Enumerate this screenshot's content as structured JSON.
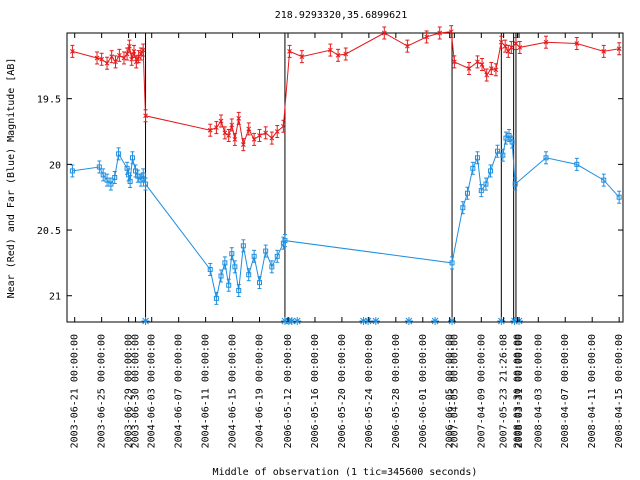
{
  "chart_data": {
    "type": "scatter",
    "title": "218.9293320,35.6899621",
    "xlabel": "Middle of observation (1 tic=345600 seconds)",
    "ylabel": "Near (Red) and Far (Blue) Magnitude [AB]",
    "ylim": [
      21.2,
      19.0
    ],
    "y_ticks": [
      19.5,
      20,
      20.5,
      21
    ],
    "x_ticks": [
      "2003-06-21 00:00:00",
      "2003-06-25 00:00:00",
      "2003-06-29 00:00:00",
      "2003-06-30 00:00:00",
      "2004-06-03 00:00:00",
      "2004-06-07 00:00:00",
      "2004-06-11 00:00:00",
      "2004-06-15 00:00:00",
      "2004-06-19 00:00:00",
      "2006-05-12 00:00:00",
      "2006-05-16 00:00:00",
      "2006-05-20 00:00:00",
      "2006-05-24 00:00:00",
      "2006-05-28 00:00:00",
      "2006-06-01 00:00:00",
      "2006-06-05 00:00:00",
      "2007-04-05 00:00:00",
      "2007-04-09 00:00:00",
      "2007-05-23 21:26:08",
      "2008-03-30 00:00:00",
      "2008-03-31 00:00:00",
      "2008-04-03 00:00:00",
      "2008-04-07 00:00:00",
      "2008-04-11 00:00:00",
      "2008-04-15 00:00:00"
    ],
    "x_tick_positions": [
      0.3,
      3.8,
      7.3,
      8.2,
      10.3,
      13.8,
      17.3,
      20.8,
      24.3,
      28.0,
      31.5,
      35.0,
      38.5,
      42.0,
      45.5,
      49.0,
      49.6,
      53.1,
      56.0,
      57.8,
      58.0,
      60.5,
      64.0,
      67.5,
      71.0
    ],
    "gaps_at": [
      9.5,
      27.6,
      49.3,
      55.7,
      57.3,
      57.6
    ],
    "xlim": [
      -0.7,
      71.5
    ],
    "series": [
      {
        "color": "#e41a1c",
        "marker": "x",
        "x": [
          0,
          3.2,
          3.8,
          4.5,
          5.1,
          5.6,
          6.1,
          6.7,
          7.1,
          7.4,
          7.7,
          8.0,
          8.3,
          8.6,
          8.9,
          9.2,
          9.5,
          17.9,
          18.7,
          19.3,
          19.8,
          20.3,
          20.7,
          21.1,
          21.6,
          22.2,
          22.9,
          23.6,
          24.3,
          25.1,
          25.9,
          26.6,
          27.4,
          28.2,
          29.8,
          33.5,
          34.5,
          35.5,
          40.5,
          43.5,
          46.0,
          47.7,
          49.2,
          49.6,
          51.5,
          52.6,
          53.2,
          53.8,
          54.4,
          55.0,
          55.7,
          56.2,
          56.6,
          57.0,
          57.6,
          58.1,
          61.5,
          65.5,
          69.0,
          71.0
        ],
        "y": [
          19.14,
          19.19,
          19.2,
          19.23,
          19.18,
          19.22,
          19.17,
          19.19,
          19.16,
          19.1,
          19.2,
          19.14,
          19.22,
          19.18,
          19.16,
          19.13,
          19.63,
          19.74,
          19.72,
          19.67,
          19.76,
          19.78,
          19.7,
          19.81,
          19.65,
          19.85,
          19.73,
          19.81,
          19.78,
          19.76,
          19.8,
          19.75,
          19.71,
          19.14,
          19.18,
          19.13,
          19.17,
          19.16,
          19.0,
          19.1,
          19.03,
          19.0,
          18.99,
          19.22,
          19.27,
          19.22,
          19.24,
          19.32,
          19.27,
          19.28,
          19.07,
          19.1,
          19.14,
          19.11,
          19.08,
          19.11,
          19.07,
          19.08,
          19.14,
          19.12
        ]
      },
      {
        "color": "#1f8fe0",
        "marker": "square",
        "x": [
          0,
          3.5,
          4.0,
          4.5,
          5.0,
          5.5,
          6.0,
          7.1,
          7.3,
          7.5,
          7.8,
          8.2,
          8.5,
          8.9,
          9.2,
          9.5,
          17.9,
          18.7,
          19.3,
          19.8,
          20.3,
          20.7,
          21.1,
          21.6,
          22.2,
          22.9,
          23.6,
          24.3,
          25.1,
          25.9,
          26.6,
          27.4,
          27.6,
          49.3,
          50.7,
          51.3,
          52.0,
          52.6,
          53.1,
          53.7,
          54.3,
          55.2,
          55.9,
          56.3,
          56.7,
          57.1,
          57.5,
          61.5,
          65.5,
          69.0,
          71.0
        ],
        "y": [
          20.05,
          20.02,
          20.08,
          20.12,
          20.15,
          20.1,
          19.92,
          20.03,
          20.08,
          20.13,
          19.95,
          20.05,
          20.09,
          20.12,
          20.08,
          20.15,
          20.8,
          21.02,
          20.85,
          20.75,
          20.92,
          20.68,
          20.78,
          20.96,
          20.62,
          20.84,
          20.7,
          20.9,
          20.66,
          20.78,
          20.7,
          20.6,
          20.58,
          20.75,
          20.33,
          20.22,
          20.03,
          19.95,
          20.2,
          20.15,
          20.05,
          19.9,
          19.93,
          19.8,
          19.78,
          19.83,
          20.15,
          19.95,
          20.0,
          20.12,
          20.25
        ]
      }
    ],
    "grid": false,
    "legend": "none"
  }
}
